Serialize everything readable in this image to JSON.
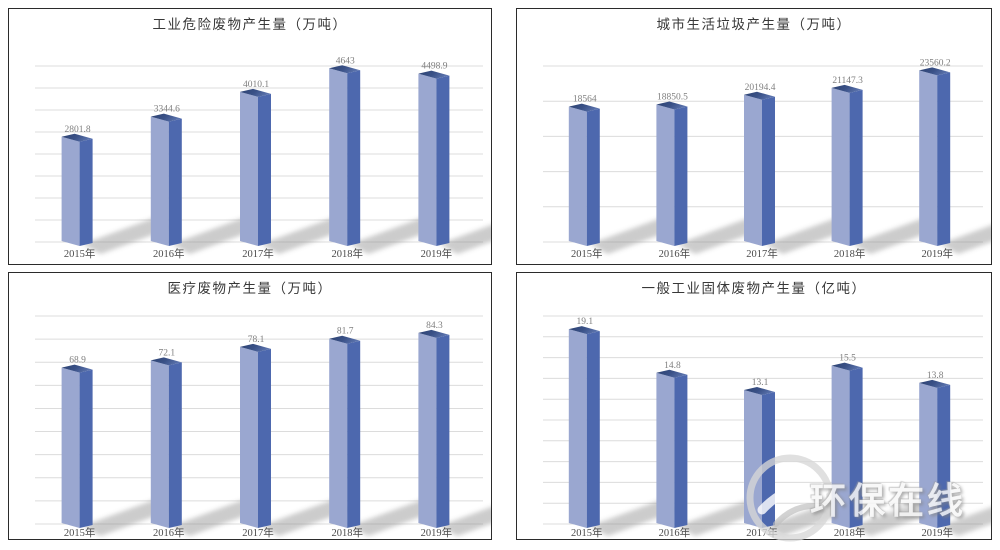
{
  "watermark": {
    "text": "环保在线"
  },
  "style": {
    "background": "#ffffff",
    "panel_border": "#2b2b2b",
    "title_color": "#383838",
    "gridline": "#dcdcdc",
    "bar_front": "#9AA7D0",
    "bar_side": "#4D68AE",
    "bar_top_dark": "#2B4170",
    "bar_top_light": "#5C74AE",
    "shadow": "#8f8f8f",
    "value_label": "#7f7f7f",
    "axis_label": "#4a4a4a"
  },
  "chart_data": [
    {
      "type": "bar",
      "title": "工业危险废物产生量（万吨）",
      "unit": "万吨",
      "categories": [
        "2015年",
        "2016年",
        "2017年",
        "2018年",
        "2019年"
      ],
      "values": [
        2801.8,
        3344.6,
        4010.1,
        4643,
        4498.9
      ],
      "labels": [
        "2801.8",
        "3344.6",
        "4010.1",
        "4643",
        "4498.9"
      ],
      "ylim": [
        0,
        5000
      ],
      "grid": true,
      "legend": null
    },
    {
      "type": "bar",
      "title": "城市生活垃圾产生量（万吨）",
      "unit": "万吨",
      "categories": [
        "2015年",
        "2016年",
        "2017年",
        "2018年",
        "2019年"
      ],
      "values": [
        18564,
        18850.5,
        20194.4,
        21147.3,
        23560.2
      ],
      "labels": [
        "18564",
        "18850.5",
        "20194.4",
        "21147.3",
        "23560.2"
      ],
      "ylim": [
        0,
        25000
      ],
      "grid": true,
      "legend": null
    },
    {
      "type": "bar",
      "title": "医疗废物产生量（万吨）",
      "unit": "万吨",
      "categories": [
        "2015年",
        "2016年",
        "2017年",
        "2018年",
        "2019年"
      ],
      "values": [
        68.9,
        72.1,
        78.1,
        81.7,
        84.3
      ],
      "labels": [
        "68.9",
        "72.1",
        "78.1",
        "81.7",
        "84.3"
      ],
      "ylim": [
        0,
        90
      ],
      "grid": true,
      "legend": null
    },
    {
      "type": "bar",
      "title": "一般工业固体废物产生量（亿吨）",
      "unit": "亿吨",
      "categories": [
        "2015年",
        "2016年",
        "2017年",
        "2018年",
        "2019年"
      ],
      "values": [
        19.1,
        14.8,
        13.1,
        15.5,
        13.8
      ],
      "labels": [
        "19.1",
        "14.8",
        "13.1",
        "15.5",
        "13.8"
      ],
      "ylim": [
        0,
        20
      ],
      "grid": true,
      "legend": null
    }
  ]
}
